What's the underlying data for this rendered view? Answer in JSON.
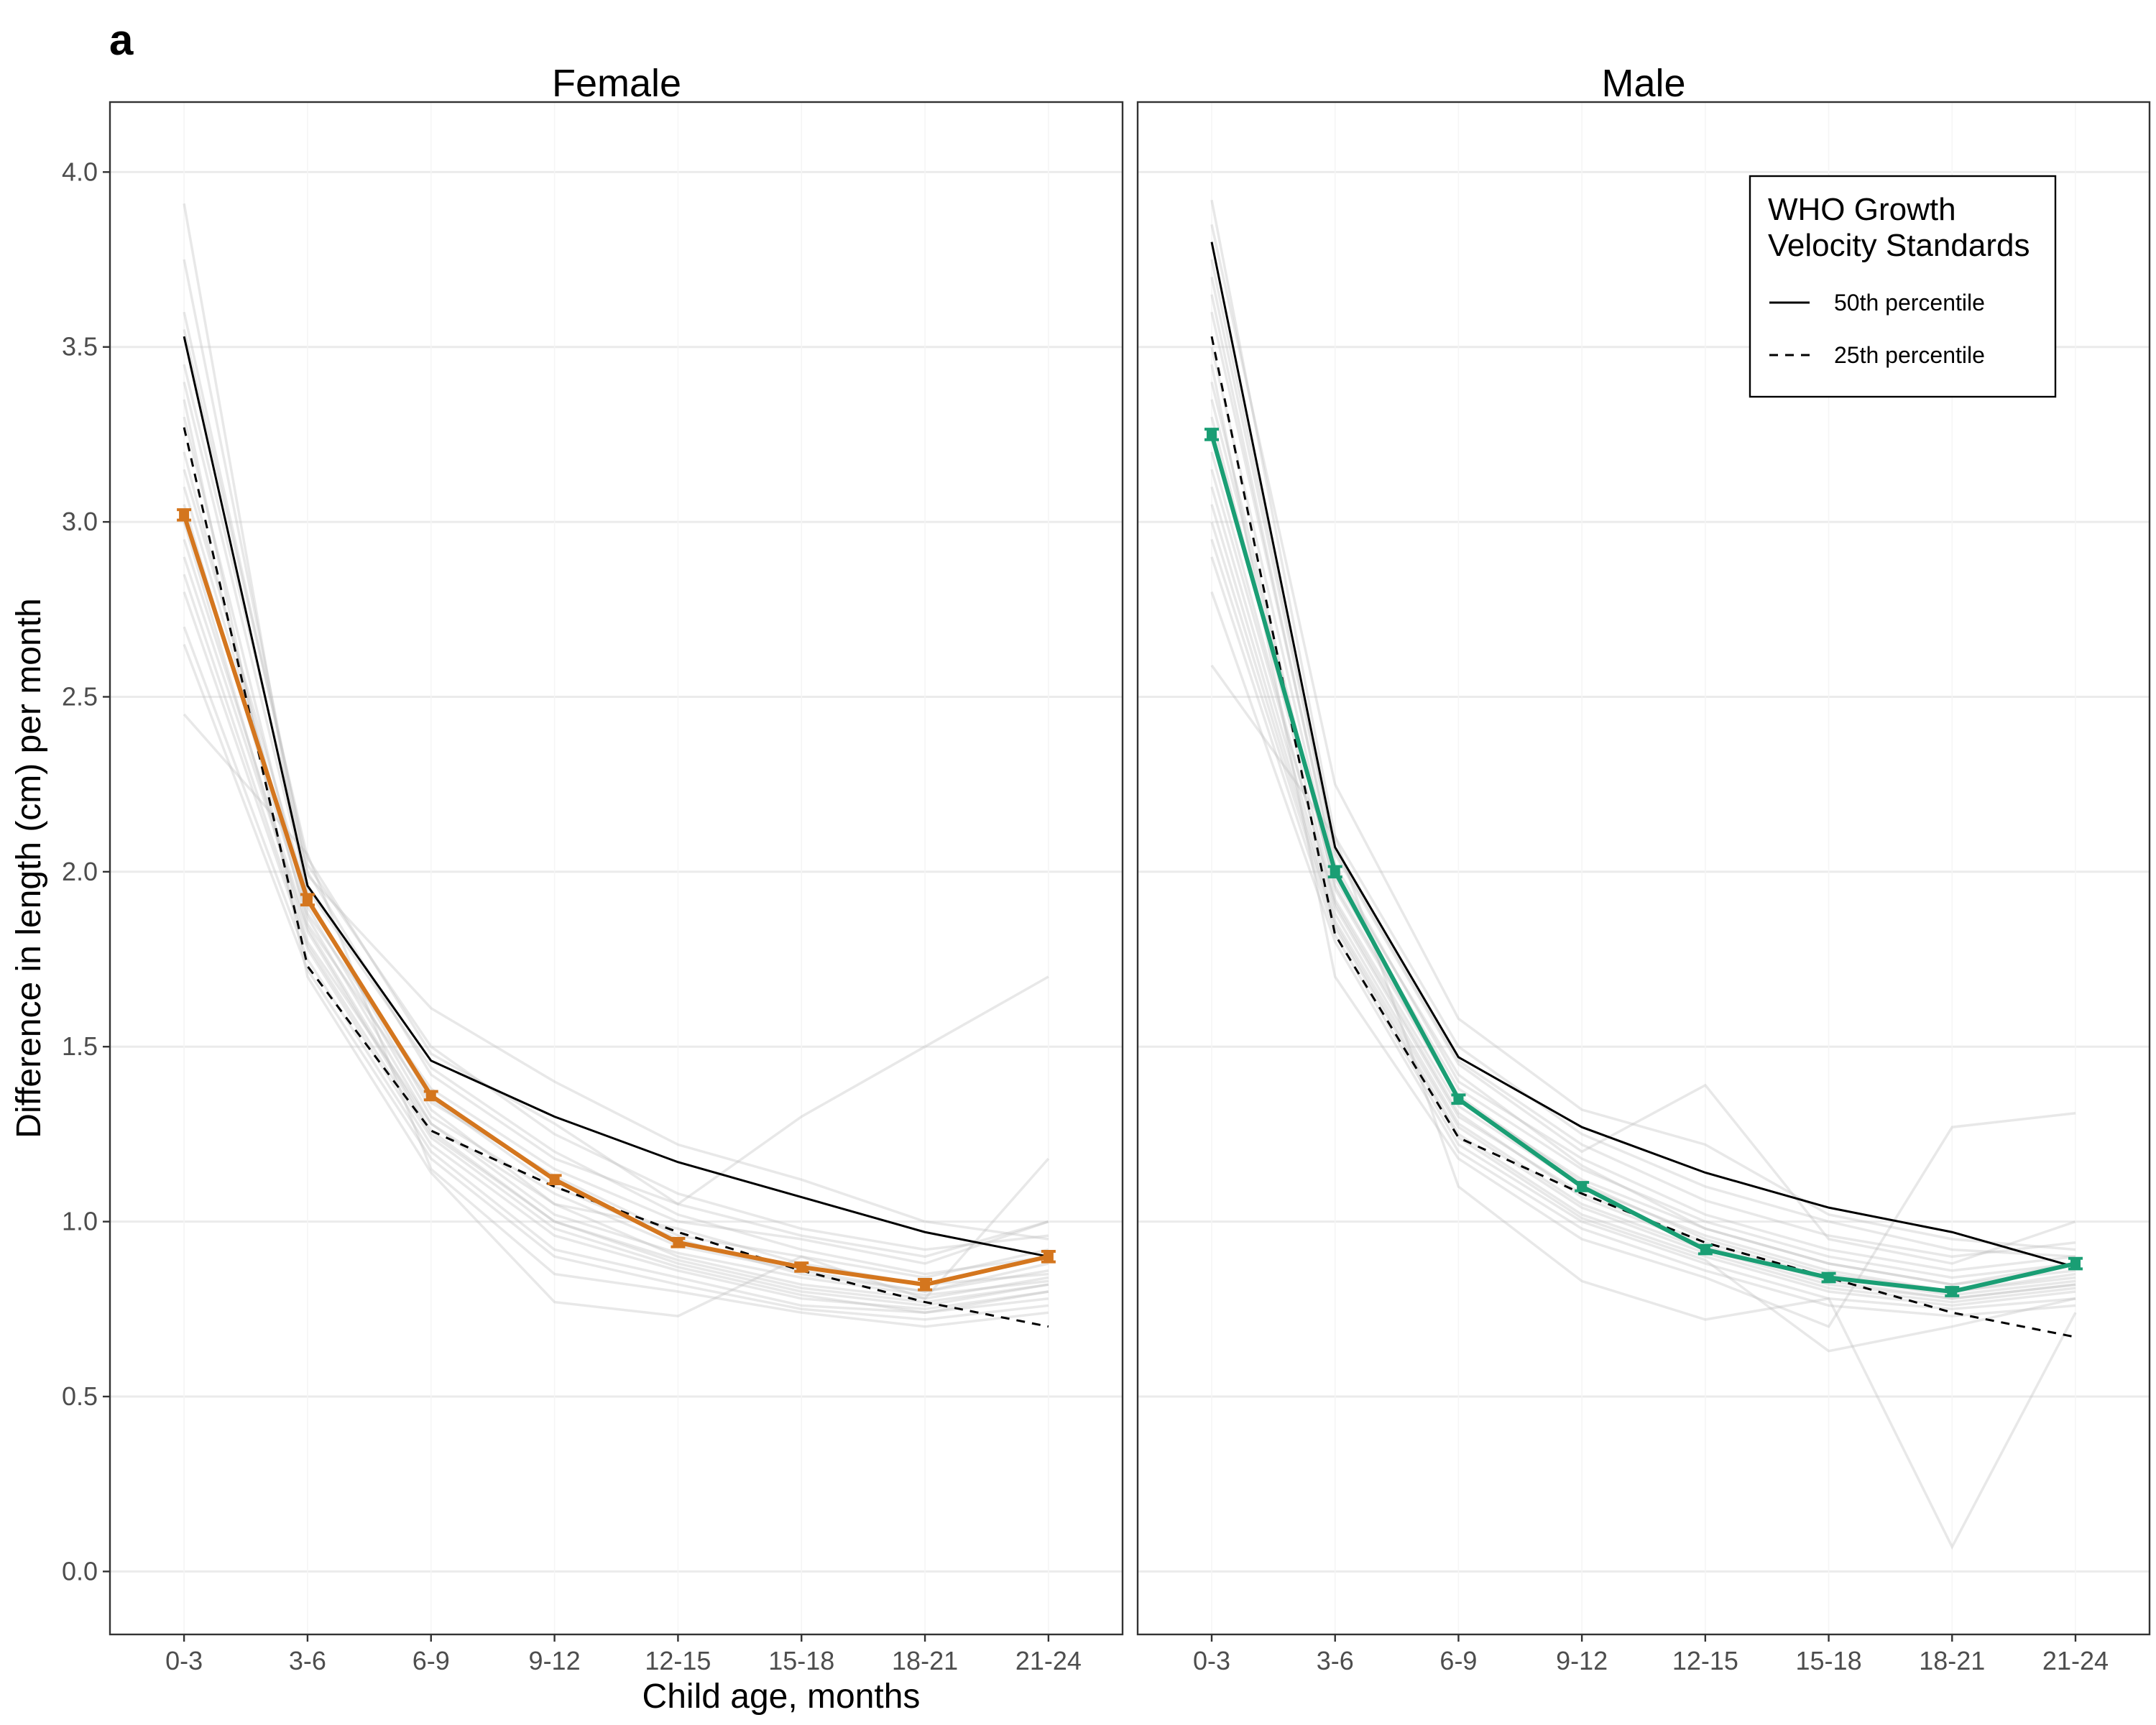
{
  "figure": {
    "panel_label": "a",
    "xlabel": "Child age, months",
    "ylabel": "Difference in length (cm) per month"
  },
  "legend": {
    "title_line1": "WHO Growth",
    "title_line2": "Velocity Standards",
    "item_50": "50th percentile",
    "item_25": "25th percentile"
  },
  "chart_data": [
    {
      "type": "line",
      "title": "Female",
      "categories": [
        "0-3",
        "3-6",
        "6-9",
        "9-12",
        "12-15",
        "15-18",
        "18-21",
        "21-24"
      ],
      "ylim": [
        -0.18,
        4.2
      ],
      "yticks": [
        "0.0",
        "0.5",
        "1.0",
        "1.5",
        "2.0",
        "2.5",
        "3.0",
        "3.5",
        "4.0"
      ],
      "grid": true,
      "color": "#D4761E",
      "series": [
        {
          "name": "",
          "values": [
            3.02,
            1.92,
            1.36,
            1.12,
            0.94,
            0.87,
            0.82,
            0.9
          ],
          "err": [
            0.015,
            0.015,
            0.012,
            0.012,
            0.012,
            0.012,
            0.015,
            0.015
          ]
        },
        {
          "name": "50th percentile",
          "values": [
            3.53,
            1.96,
            1.46,
            1.3,
            1.17,
            1.07,
            0.97,
            0.9
          ]
        },
        {
          "name": "25th percentile",
          "values": [
            3.27,
            1.73,
            1.26,
            1.1,
            0.97,
            0.86,
            0.77,
            0.7
          ]
        }
      ],
      "background_lines": [
        [
          3.91,
          1.92,
          1.35,
          1.1,
          0.95,
          0.85,
          0.8,
          0.88
        ],
        [
          3.75,
          1.99,
          1.61,
          1.4,
          1.22,
          1.12,
          1.0,
          0.95
        ],
        [
          3.55,
          2.04,
          1.48,
          1.28,
          1.05,
          1.3,
          1.5,
          1.7
        ],
        [
          3.4,
          1.95,
          1.44,
          1.2,
          1.02,
          0.92,
          0.85,
          0.9
        ],
        [
          3.3,
          1.88,
          1.38,
          1.15,
          1.0,
          0.95,
          0.88,
          1.0
        ],
        [
          3.2,
          1.85,
          1.34,
          1.13,
          0.96,
          0.9,
          0.84,
          0.92
        ],
        [
          3.1,
          1.9,
          1.3,
          1.08,
          0.93,
          0.86,
          0.8,
          0.86
        ],
        [
          3.0,
          1.8,
          1.28,
          1.05,
          0.9,
          0.82,
          0.78,
          0.84
        ],
        [
          2.9,
          1.83,
          1.25,
          1.0,
          0.88,
          0.8,
          0.76,
          0.82
        ],
        [
          2.8,
          1.78,
          1.22,
          0.96,
          0.86,
          0.78,
          0.75,
          0.8
        ],
        [
          2.7,
          1.75,
          1.2,
          0.92,
          0.84,
          0.76,
          0.74,
          0.78
        ],
        [
          2.65,
          1.72,
          1.18,
          0.9,
          0.82,
          0.75,
          0.72,
          0.76
        ],
        [
          2.45,
          2.05,
          1.15,
          0.85,
          0.8,
          0.74,
          0.7,
          0.74
        ],
        [
          3.35,
          1.7,
          1.14,
          0.77,
          0.73,
          0.9,
          0.78,
          1.18
        ],
        [
          3.15,
          1.93,
          1.32,
          1.05,
          0.98,
          0.88,
          0.82,
          0.85
        ],
        [
          3.05,
          1.87,
          1.28,
          1.02,
          0.91,
          0.84,
          0.79,
          0.83
        ],
        [
          2.95,
          1.84,
          1.26,
          1.0,
          0.89,
          0.81,
          0.77,
          0.82
        ],
        [
          3.45,
          2.0,
          1.42,
          1.18,
          1.05,
          0.96,
          0.9,
          1.0
        ],
        [
          3.6,
          2.02,
          1.5,
          1.25,
          1.08,
          0.98,
          0.92,
          0.96
        ],
        [
          2.85,
          1.79,
          1.24,
          0.98,
          0.87,
          0.79,
          0.74,
          0.8
        ]
      ]
    },
    {
      "type": "line",
      "title": "Male",
      "categories": [
        "0-3",
        "3-6",
        "6-9",
        "9-12",
        "12-15",
        "15-18",
        "18-21",
        "21-24"
      ],
      "ylim": [
        -0.18,
        4.2
      ],
      "grid": true,
      "color": "#1A9E74",
      "series": [
        {
          "name": "",
          "values": [
            3.25,
            2.0,
            1.35,
            1.1,
            0.92,
            0.84,
            0.8,
            0.88
          ],
          "err": [
            0.015,
            0.015,
            0.012,
            0.012,
            0.012,
            0.012,
            0.012,
            0.015
          ]
        },
        {
          "name": "50th percentile",
          "values": [
            3.8,
            2.07,
            1.47,
            1.27,
            1.14,
            1.04,
            0.97,
            0.87
          ]
        },
        {
          "name": "25th percentile",
          "values": [
            3.53,
            1.82,
            1.24,
            1.08,
            0.94,
            0.84,
            0.74,
            0.67
          ]
        }
      ],
      "background_lines": [
        [
          3.92,
          2.1,
          1.5,
          1.25,
          1.1,
          1.0,
          0.92,
          0.9
        ],
        [
          3.85,
          2.25,
          1.58,
          1.32,
          1.22,
          1.02,
          0.95,
          0.92
        ],
        [
          3.7,
          2.05,
          1.45,
          1.2,
          1.39,
          0.95,
          0.88,
          1.0
        ],
        [
          3.6,
          2.02,
          1.4,
          1.18,
          1.02,
          0.92,
          0.86,
          0.9
        ],
        [
          3.5,
          1.98,
          1.38,
          1.15,
          1.0,
          0.9,
          0.84,
          0.88
        ],
        [
          3.4,
          1.95,
          1.35,
          1.12,
          0.98,
          0.88,
          0.82,
          0.86
        ],
        [
          3.3,
          1.92,
          1.33,
          1.1,
          0.96,
          0.86,
          0.8,
          0.84
        ],
        [
          3.2,
          1.9,
          1.3,
          1.08,
          0.94,
          0.84,
          0.79,
          0.83
        ],
        [
          3.1,
          1.88,
          1.28,
          1.05,
          0.92,
          0.82,
          0.78,
          0.82
        ],
        [
          3.0,
          1.85,
          1.25,
          1.02,
          0.9,
          0.8,
          0.76,
          0.8
        ],
        [
          2.9,
          1.82,
          1.22,
          1.0,
          0.88,
          0.78,
          0.75,
          0.78
        ],
        [
          2.8,
          1.8,
          1.2,
          0.98,
          0.86,
          0.76,
          0.73,
          0.76
        ],
        [
          2.59,
          2.1,
          1.1,
          0.83,
          0.72,
          0.78,
          0.07,
          0.74
        ],
        [
          3.45,
          1.7,
          1.18,
          0.95,
          0.84,
          0.7,
          1.27,
          1.31
        ],
        [
          3.65,
          2.0,
          1.42,
          1.16,
          0.98,
          0.88,
          0.82,
          0.88
        ],
        [
          3.35,
          1.96,
          1.36,
          1.11,
          0.95,
          0.85,
          0.8,
          0.85
        ],
        [
          3.15,
          1.91,
          1.31,
          1.07,
          0.93,
          0.83,
          0.78,
          0.82
        ],
        [
          3.05,
          1.86,
          1.27,
          1.04,
          0.91,
          0.81,
          0.77,
          0.81
        ],
        [
          3.75,
          2.06,
          1.46,
          1.22,
          1.06,
          0.96,
          0.9,
          0.94
        ],
        [
          2.95,
          1.84,
          1.24,
          1.01,
          0.89,
          0.63,
          0.7,
          0.78
        ]
      ]
    }
  ]
}
